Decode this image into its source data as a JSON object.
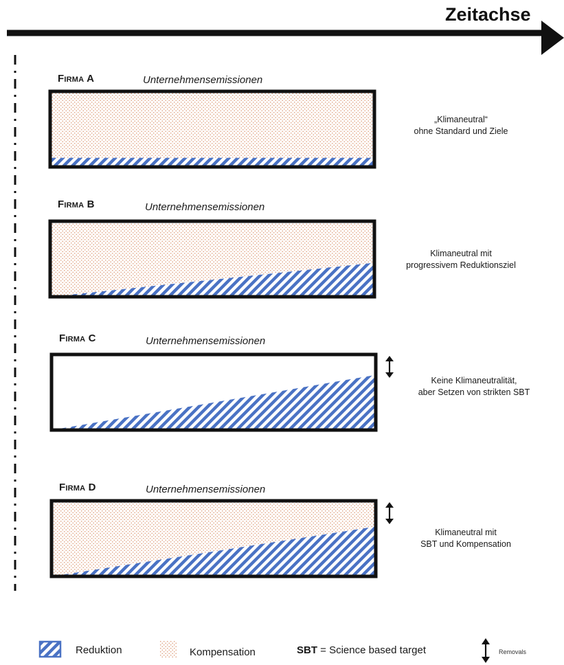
{
  "axis": {
    "title": "Zeitachse"
  },
  "companies": [
    {
      "name": "Firma A",
      "subtitle": "Unternehmensemissionen",
      "description": [
        "„Klimaneutral“",
        "ohne Standard und Ziele"
      ],
      "fill": "kompensation",
      "reduction_start": 0.12,
      "reduction_end": 0.12,
      "removals": false
    },
    {
      "name": "Firma B",
      "subtitle": "Unternehmensemissionen",
      "description": [
        "Klimaneutral mit",
        "progressivem Reduktionsziel"
      ],
      "fill": "kompensation",
      "reduction_start": 0.0,
      "reduction_end": 0.45,
      "removals": false
    },
    {
      "name": "Firma C",
      "subtitle": "Unternehmensemissionen",
      "description": [
        "Keine Klimaneutralität,",
        "aber Setzen von strikten SBT"
      ],
      "fill": "none",
      "reduction_start": 0.0,
      "reduction_end": 0.73,
      "removals": true
    },
    {
      "name": "Firma D",
      "subtitle": "Unternehmensemissionen",
      "description": [
        "Klimaneutral mit",
        "SBT und Kompensation"
      ],
      "fill": "kompensation",
      "reduction_start": 0.0,
      "reduction_end": 0.66,
      "removals": true
    }
  ],
  "legend": {
    "reduktion": "Reduktion",
    "kompensation": "Kompensation",
    "sbt_key": "SBT",
    "sbt_text": " = Science based target",
    "removals": "Removals"
  },
  "colors": {
    "reduction": "#4a72c4",
    "compensation_dot": "#d9906a",
    "frame": "#111111"
  }
}
